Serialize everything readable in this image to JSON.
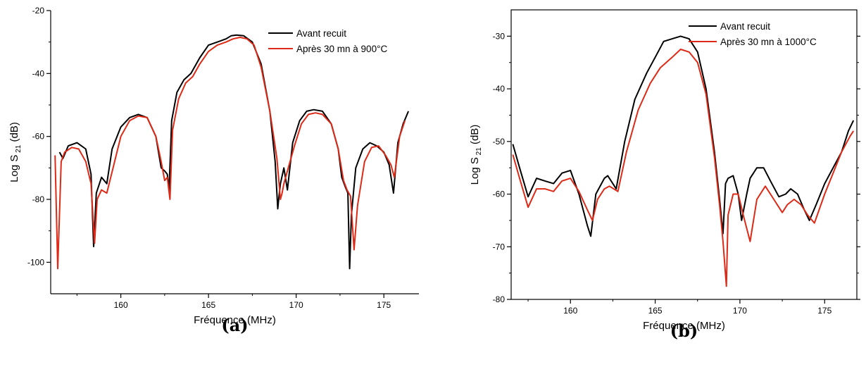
{
  "chart_data": [
    {
      "type": "line",
      "panel_label": "(a)",
      "xlabel": "Fréquence (MHz)",
      "ylabel": "Log S",
      "ylabel_sub": "21",
      "ylabel_unit": "(dB)",
      "xlim": [
        156,
        177
      ],
      "ylim": [
        -110,
        -20
      ],
      "xticks": [
        160,
        165,
        170,
        175
      ],
      "yticks": [
        -100,
        -80,
        -60,
        -40,
        -20
      ],
      "legend_position": "top-right",
      "series": [
        {
          "name": "Avant recuit",
          "color": "#000000",
          "x": [
            156.5,
            156.7,
            157.0,
            157.5,
            158.0,
            158.3,
            158.45,
            158.6,
            158.9,
            159.2,
            159.5,
            160.0,
            160.5,
            161.0,
            161.5,
            162.0,
            162.3,
            162.5,
            162.65,
            162.75,
            162.9,
            163.2,
            163.6,
            164.0,
            164.5,
            165.0,
            165.5,
            166.0,
            166.3,
            166.6,
            167.0,
            167.5,
            168.0,
            168.5,
            168.8,
            168.95,
            169.0,
            169.1,
            169.3,
            169.5,
            169.8,
            170.2,
            170.6,
            171.0,
            171.5,
            172.0,
            172.4,
            172.6,
            172.8,
            172.95,
            173.05,
            173.15,
            173.4,
            173.8,
            174.2,
            174.6,
            175.0,
            175.3,
            175.55,
            175.8,
            176.1,
            176.4
          ],
          "values": [
            -65,
            -67,
            -63,
            -62,
            -64,
            -72,
            -95,
            -78,
            -73,
            -75,
            -64,
            -57,
            -54,
            -53,
            -54,
            -60,
            -70,
            -71,
            -72,
            -77,
            -55,
            -46,
            -42,
            -40,
            -35,
            -31,
            -30,
            -29,
            -28,
            -27.8,
            -28,
            -30,
            -37,
            -52,
            -68,
            -83,
            -80,
            -75,
            -70,
            -77,
            -62,
            -55,
            -52,
            -51.5,
            -52,
            -56,
            -64,
            -73,
            -76,
            -78,
            -102,
            -85,
            -70,
            -64,
            -62,
            -63,
            -65,
            -69,
            -78,
            -62,
            -56,
            -52
          ]
        },
        {
          "name": "Après 30 mn à 900°C",
          "color": "#dd2a17",
          "x": [
            156.25,
            156.4,
            156.6,
            156.8,
            157.2,
            157.6,
            158.0,
            158.3,
            158.5,
            158.65,
            158.9,
            159.2,
            159.6,
            160.0,
            160.5,
            161.0,
            161.5,
            162.0,
            162.3,
            162.5,
            162.65,
            162.8,
            162.95,
            163.3,
            163.7,
            164.1,
            164.5,
            165.0,
            165.5,
            166.0,
            166.4,
            166.8,
            167.2,
            167.6,
            168.0,
            168.5,
            168.9,
            169.1,
            169.2,
            169.3,
            169.5,
            169.9,
            170.3,
            170.7,
            171.1,
            171.5,
            172.0,
            172.4,
            172.7,
            172.9,
            173.1,
            173.3,
            173.5,
            173.9,
            174.3,
            174.7,
            175.1,
            175.4,
            175.6,
            175.9,
            176.2
          ],
          "values": [
            -66,
            -102,
            -68,
            -65,
            -63.5,
            -64,
            -68,
            -75,
            -94,
            -80,
            -77,
            -78,
            -69,
            -60,
            -55,
            -53.5,
            -54,
            -60,
            -68,
            -74,
            -73,
            -80,
            -58,
            -48,
            -43,
            -41,
            -37,
            -33,
            -31,
            -30,
            -29,
            -28.5,
            -29,
            -31,
            -38,
            -52,
            -67,
            -80,
            -78,
            -75,
            -71,
            -63,
            -56,
            -53,
            -52.5,
            -53,
            -56,
            -64,
            -74,
            -77,
            -79,
            -96,
            -82,
            -68,
            -63.5,
            -63,
            -66,
            -69,
            -73,
            -60,
            -55
          ]
        }
      ]
    },
    {
      "type": "line",
      "panel_label": "(b)",
      "xlabel": "Fréquence (MHz)",
      "ylabel": "Log S",
      "ylabel_sub": "21",
      "ylabel_unit": "(dB)",
      "xlim": [
        156.5,
        176.9
      ],
      "ylim": [
        -80,
        -25
      ],
      "xticks": [
        160,
        165,
        170,
        175
      ],
      "yticks": [
        -80,
        -70,
        -60,
        -50,
        -40,
        -30
      ],
      "legend_position": "top-right",
      "series": [
        {
          "name": "Avant recuit",
          "color": "#000000",
          "x": [
            156.6,
            157.0,
            157.5,
            158.0,
            158.5,
            159.0,
            159.5,
            160.0,
            160.5,
            161.0,
            161.2,
            161.5,
            162.0,
            162.2,
            162.7,
            163.2,
            163.8,
            164.5,
            165.0,
            165.5,
            166.0,
            166.5,
            167.0,
            167.5,
            168.0,
            168.5,
            168.8,
            169.0,
            169.15,
            169.3,
            169.6,
            169.9,
            170.1,
            170.4,
            170.6,
            171.0,
            171.4,
            171.8,
            172.3,
            172.7,
            173.0,
            173.4,
            173.8,
            174.1,
            174.5,
            175.0,
            175.5,
            176.0,
            176.4,
            176.7
          ],
          "values": [
            -50.5,
            -55,
            -60.5,
            -57,
            -57.5,
            -58,
            -56,
            -55.5,
            -60,
            -66,
            -68,
            -60,
            -57,
            -56.5,
            -59,
            -50,
            -42,
            -37,
            -34,
            -31,
            -30.5,
            -30,
            -30.5,
            -33,
            -40,
            -52,
            -61,
            -67.5,
            -58,
            -57,
            -56.5,
            -60,
            -65,
            -60,
            -57,
            -55,
            -55,
            -57.5,
            -60.5,
            -60,
            -59,
            -60,
            -63,
            -65,
            -62,
            -58,
            -55,
            -52,
            -48,
            -46
          ]
        },
        {
          "name": "Après 30 mn à 1000°C",
          "color": "#dd2a17",
          "x": [
            156.6,
            157.0,
            157.5,
            158.0,
            158.5,
            159.0,
            159.5,
            160.0,
            160.5,
            161.0,
            161.3,
            161.6,
            162.0,
            162.3,
            162.8,
            163.3,
            164.0,
            164.7,
            165.3,
            166.0,
            166.5,
            167.0,
            167.5,
            168.0,
            168.5,
            168.8,
            169.0,
            169.2,
            169.3,
            169.6,
            169.9,
            170.2,
            170.6,
            171.0,
            171.5,
            172.0,
            172.5,
            172.8,
            173.2,
            173.6,
            174.0,
            174.4,
            175.0,
            175.5,
            176.0,
            176.5,
            176.7
          ],
          "values": [
            -52.5,
            -57,
            -62.5,
            -59,
            -59,
            -59.5,
            -57.5,
            -57,
            -59.5,
            -63,
            -65,
            -61,
            -59,
            -58.5,
            -59.5,
            -52,
            -44,
            -39,
            -36,
            -34,
            -32.5,
            -33,
            -35,
            -41,
            -53,
            -62,
            -69,
            -77.5,
            -64,
            -60,
            -60,
            -64,
            -69,
            -61,
            -58.5,
            -61,
            -63.5,
            -62,
            -61,
            -62,
            -64,
            -65.5,
            -60,
            -56,
            -52,
            -49,
            -48
          ]
        }
      ]
    }
  ]
}
